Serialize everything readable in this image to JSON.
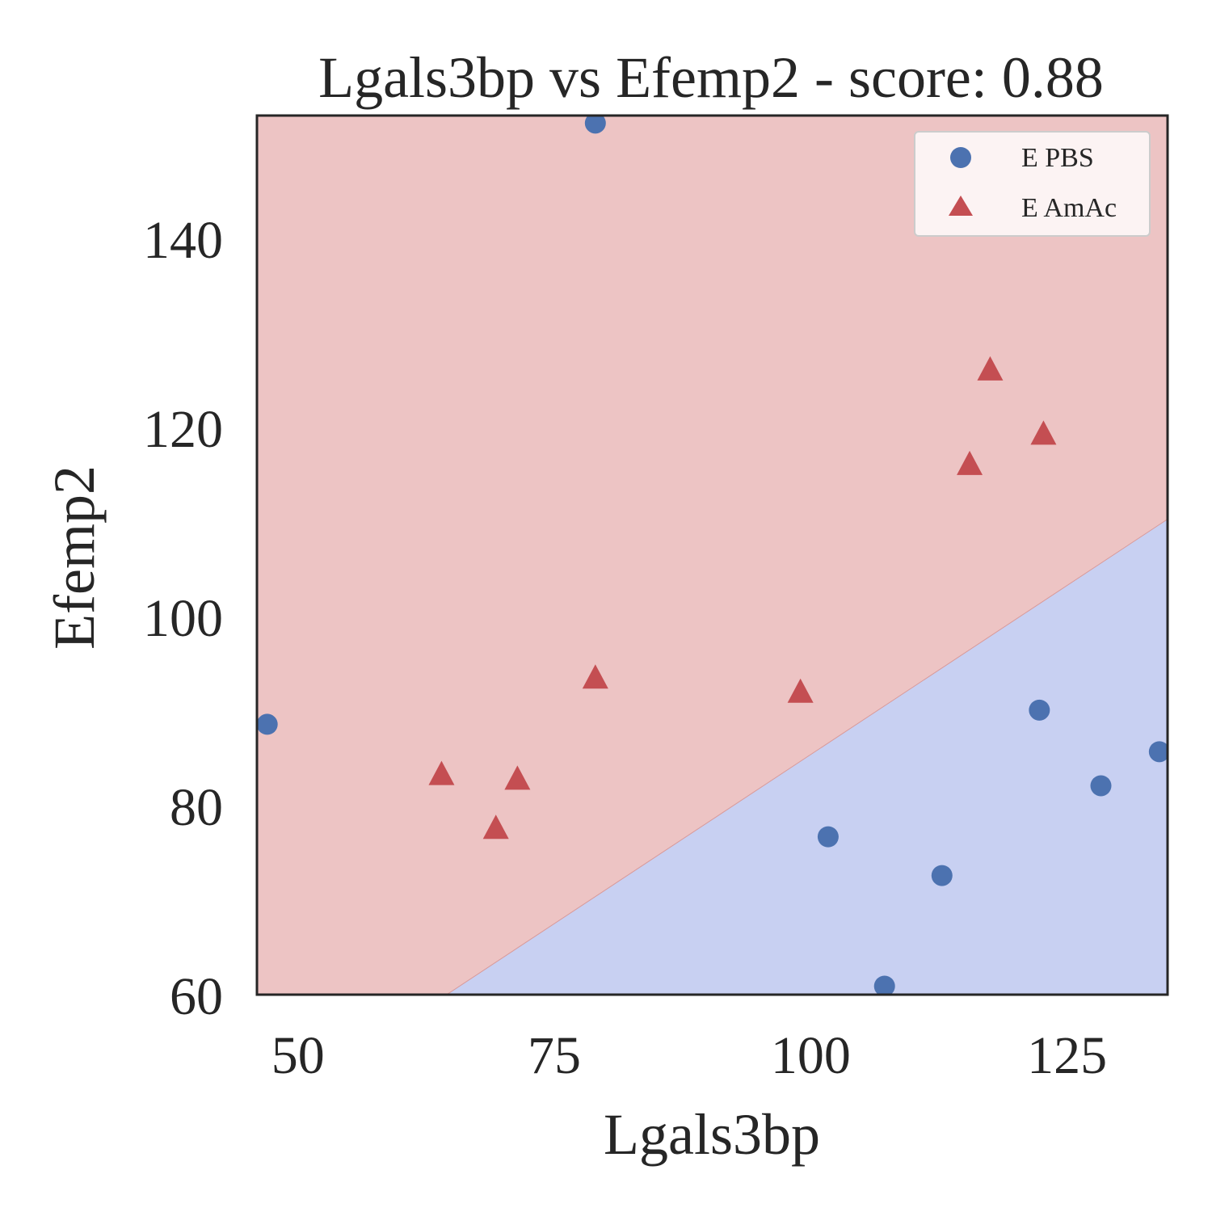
{
  "chart_data": {
    "type": "scatter",
    "title": "Lgals3bp vs Efemp2 - score: 0.88",
    "xlabel": "Lgals3bp",
    "ylabel": "Efemp2",
    "xlim": [
      46.0,
      134.8
    ],
    "ylim": [
      60,
      153.0
    ],
    "xticks": [
      50,
      75,
      100,
      125
    ],
    "yticks": [
      60,
      80,
      100,
      120,
      140
    ],
    "grid": false,
    "legend_position": "top-right",
    "decision_boundary": {
      "points": [
        [
          64.5,
          60.0
        ],
        [
          134.8,
          110.3
        ]
      ],
      "below_region_color": "#c8d0f2",
      "above_region_color": "#edc4c4"
    },
    "series": [
      {
        "name": "E PBS",
        "marker": "circle",
        "color": "#4c72b0",
        "points": [
          [
            79.0,
            152.2
          ],
          [
            47.0,
            88.6
          ],
          [
            122.3,
            90.1
          ],
          [
            134.0,
            85.7
          ],
          [
            128.3,
            82.1
          ],
          [
            101.7,
            76.7
          ],
          [
            112.8,
            72.6
          ],
          [
            107.2,
            60.9
          ]
        ]
      },
      {
        "name": "E AmAc",
        "marker": "triangle",
        "color": "#c44e52",
        "points": [
          [
            117.5,
            126.0
          ],
          [
            122.7,
            119.2
          ],
          [
            115.5,
            116.0
          ],
          [
            79.0,
            93.4
          ],
          [
            99.0,
            91.9
          ],
          [
            64.0,
            83.2
          ],
          [
            71.4,
            82.7
          ],
          [
            69.3,
            77.5
          ]
        ]
      }
    ]
  }
}
